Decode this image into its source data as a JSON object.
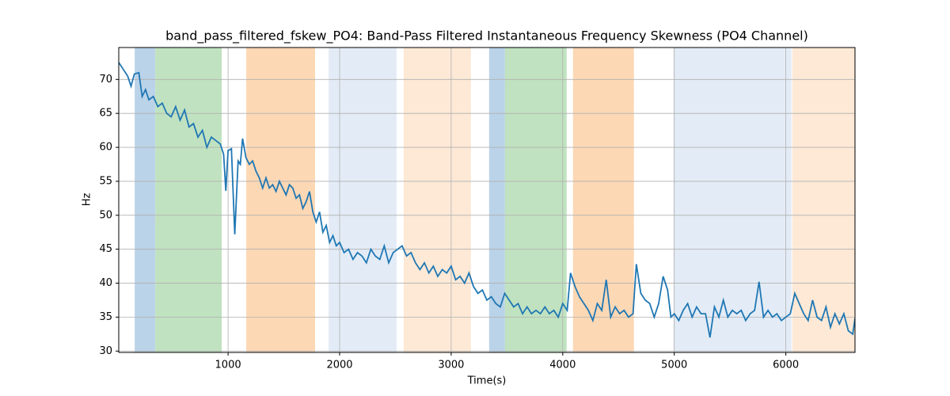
{
  "chart_data": {
    "type": "line",
    "title": "band_pass_filtered_fskew_PO4: Band-Pass Filtered Instantaneous Frequency Skewness (PO4 Channel)",
    "xlabel": "Time(s)",
    "ylabel": "Hz",
    "xlim": [
      20,
      6620
    ],
    "ylim": [
      29.8,
      74.7
    ],
    "xticks": [
      1000,
      2000,
      3000,
      4000,
      5000,
      6000
    ],
    "yticks": [
      30,
      35,
      40,
      45,
      50,
      55,
      60,
      65,
      70
    ],
    "grid": true,
    "spans": [
      {
        "x": [
          163,
          348
        ],
        "color": "#bad3e8"
      },
      {
        "x": [
          348,
          943
        ],
        "color": "#c0e2c0"
      },
      {
        "x": [
          1163,
          1780
        ],
        "color": "#fdd8b5"
      },
      {
        "x": [
          1901,
          2511
        ],
        "color": "#e3ecf6"
      },
      {
        "x": [
          2574,
          3177
        ],
        "color": "#fde9d6"
      },
      {
        "x": [
          3340,
          3482
        ],
        "color": "#bad3e8"
      },
      {
        "x": [
          3482,
          4035
        ],
        "color": "#c0e2c0"
      },
      {
        "x": [
          4092,
          4638
        ],
        "color": "#fdd8b5"
      },
      {
        "x": [
          4993,
          6050
        ],
        "color": "#e3ecf6"
      },
      {
        "x": [
          6057,
          6620
        ],
        "color": "#fde9d6"
      }
    ],
    "x": [
      20,
      60,
      100,
      130,
      160,
      200,
      230,
      260,
      290,
      330,
      370,
      410,
      450,
      490,
      530,
      570,
      610,
      650,
      690,
      730,
      770,
      810,
      850,
      890,
      930,
      960,
      980,
      1000,
      1030,
      1060,
      1090,
      1110,
      1130,
      1160,
      1190,
      1220,
      1250,
      1280,
      1310,
      1340,
      1370,
      1400,
      1430,
      1460,
      1490,
      1520,
      1550,
      1580,
      1610,
      1640,
      1670,
      1700,
      1730,
      1760,
      1790,
      1820,
      1850,
      1880,
      1910,
      1940,
      1970,
      2000,
      2040,
      2080,
      2120,
      2160,
      2200,
      2240,
      2280,
      2320,
      2360,
      2400,
      2440,
      2480,
      2520,
      2560,
      2600,
      2640,
      2680,
      2720,
      2760,
      2800,
      2840,
      2880,
      2920,
      2960,
      3000,
      3040,
      3080,
      3120,
      3160,
      3200,
      3240,
      3280,
      3320,
      3360,
      3400,
      3440,
      3480,
      3520,
      3560,
      3600,
      3640,
      3680,
      3720,
      3760,
      3800,
      3840,
      3880,
      3920,
      3960,
      4000,
      4040,
      4070,
      4110,
      4150,
      4190,
      4230,
      4270,
      4310,
      4350,
      4390,
      4430,
      4470,
      4510,
      4550,
      4590,
      4630,
      4660,
      4700,
      4740,
      4780,
      4820,
      4860,
      4900,
      4940,
      4970,
      5000,
      5040,
      5080,
      5120,
      5160,
      5200,
      5240,
      5280,
      5320,
      5360,
      5400,
      5440,
      5480,
      5520,
      5560,
      5600,
      5640,
      5680,
      5720,
      5760,
      5800,
      5840,
      5880,
      5920,
      5960,
      6000,
      6040,
      6080,
      6120,
      6160,
      6200,
      6240,
      6280,
      6320,
      6360,
      6400,
      6440,
      6480,
      6520,
      6560,
      6600,
      6620
    ],
    "series": [
      {
        "color": "#1f77b4",
        "values": [
          72.5,
          71.5,
          70.5,
          69,
          70.8,
          71,
          67.5,
          68.5,
          67,
          67.5,
          66,
          66.5,
          65,
          64.5,
          66,
          64,
          65.5,
          63,
          63.5,
          61.5,
          62.5,
          60,
          61.5,
          61,
          60.5,
          59,
          53.6,
          59.5,
          59.8,
          47.2,
          58,
          57.5,
          61.3,
          58.5,
          57.5,
          58,
          56.5,
          55.5,
          54,
          55.5,
          54,
          54.5,
          53.5,
          55,
          54,
          53,
          54.5,
          54,
          52.5,
          53,
          51,
          52,
          53.5,
          50.5,
          49,
          50.5,
          47.5,
          48.5,
          46,
          47,
          45.5,
          46,
          44.5,
          45,
          43.5,
          44.5,
          44,
          43,
          45,
          44,
          43.5,
          45.5,
          43,
          44.5,
          45,
          45.5,
          44,
          44.5,
          43,
          42,
          43,
          41.5,
          42.5,
          41,
          42,
          41.5,
          42.5,
          40.5,
          41,
          40,
          41.5,
          39.5,
          38.5,
          39,
          37.5,
          38,
          37,
          36.5,
          38.5,
          37.5,
          36.5,
          37,
          35.5,
          36.5,
          35.5,
          36,
          35.5,
          36.5,
          35.5,
          36,
          35,
          37,
          36,
          41.5,
          39.5,
          38,
          37,
          36,
          34.5,
          37,
          36,
          40.5,
          35,
          36.5,
          35.5,
          36,
          35,
          35.5,
          42.8,
          38.5,
          37.5,
          37,
          35,
          37,
          41,
          39,
          35,
          35.5,
          34.5,
          36,
          37,
          35,
          36.5,
          35.5,
          35.5,
          32,
          36.5,
          35,
          37.5,
          35,
          36,
          35.5,
          36,
          34.5,
          35.5,
          36,
          40.2,
          35,
          36,
          35,
          35.5,
          34.5,
          35,
          35.5,
          38.5,
          37,
          35.5,
          34.5,
          37.5,
          35,
          34.5,
          36.5,
          33.5,
          35.5,
          34,
          35.5,
          33,
          32.5,
          34.8
        ]
      }
    ]
  }
}
